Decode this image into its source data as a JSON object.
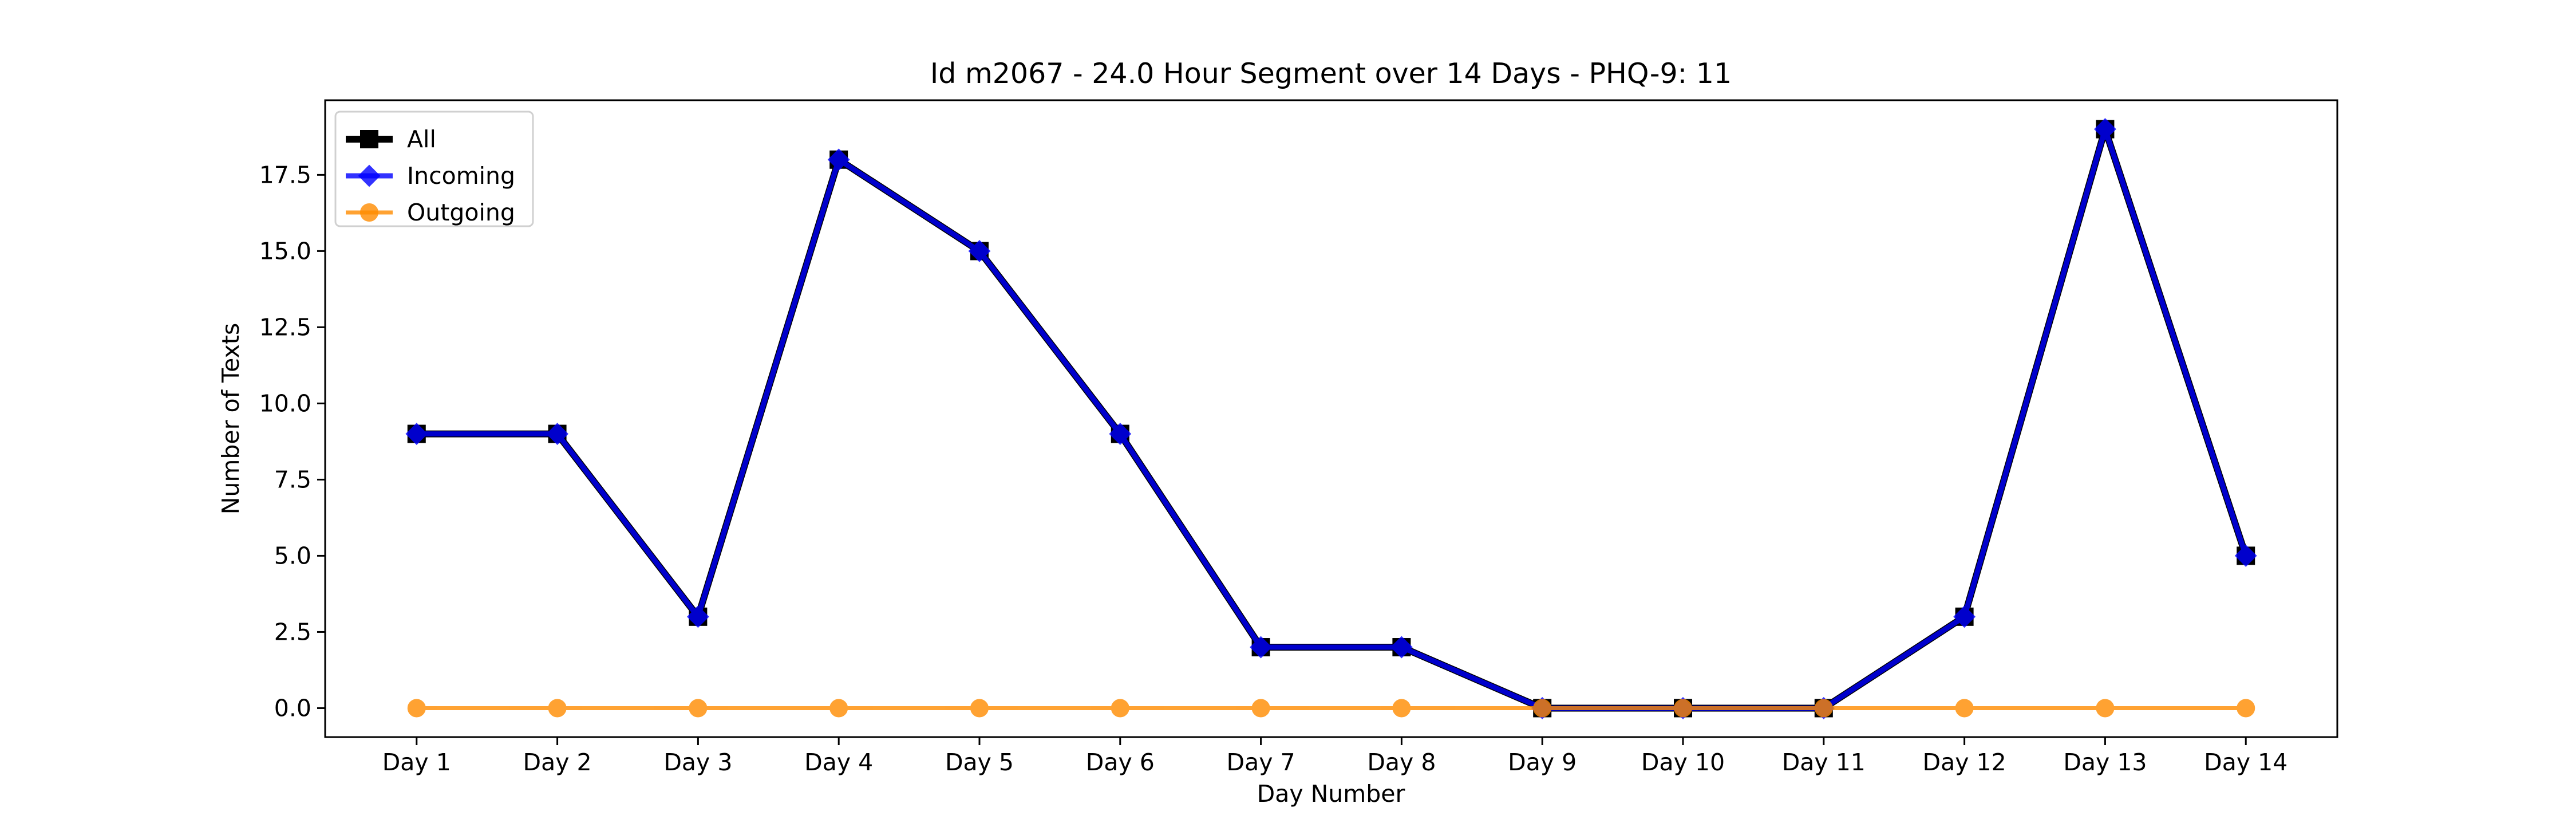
{
  "chart_data": {
    "type": "line",
    "title": "Id m2067 - 24.0 Hour Segment over 14 Days - PHQ-9: 11",
    "xlabel": "Day Number",
    "ylabel": "Number of Texts",
    "categories": [
      "Day 1",
      "Day 2",
      "Day 3",
      "Day 4",
      "Day 5",
      "Day 6",
      "Day 7",
      "Day 8",
      "Day 9",
      "Day 10",
      "Day 11",
      "Day 12",
      "Day 13",
      "Day 14"
    ],
    "ylim": [
      -0.95,
      19.95
    ],
    "yticks": [
      0.0,
      2.5,
      5.0,
      7.5,
      10.0,
      12.5,
      15.0,
      17.5
    ],
    "ytick_labels": [
      "0.0",
      "2.5",
      "5.0",
      "7.5",
      "10.0",
      "12.5",
      "15.0",
      "17.5"
    ],
    "grid": false,
    "legend_position": "top-left",
    "series": [
      {
        "name": "All",
        "color": "#000000",
        "marker": "square",
        "values": [
          9,
          9,
          3,
          18,
          15,
          9,
          2,
          2,
          0,
          0,
          0,
          3,
          19,
          5
        ]
      },
      {
        "name": "Incoming",
        "color": "#0000ff",
        "marker": "diamond",
        "values": [
          9,
          9,
          3,
          18,
          15,
          9,
          2,
          2,
          0,
          0,
          0,
          3,
          19,
          5
        ]
      },
      {
        "name": "Outgoing",
        "color": "#ff8c00",
        "marker": "circle",
        "values": [
          0,
          0,
          0,
          0,
          0,
          0,
          0,
          0,
          0,
          0,
          0,
          0,
          0,
          0
        ]
      }
    ]
  }
}
